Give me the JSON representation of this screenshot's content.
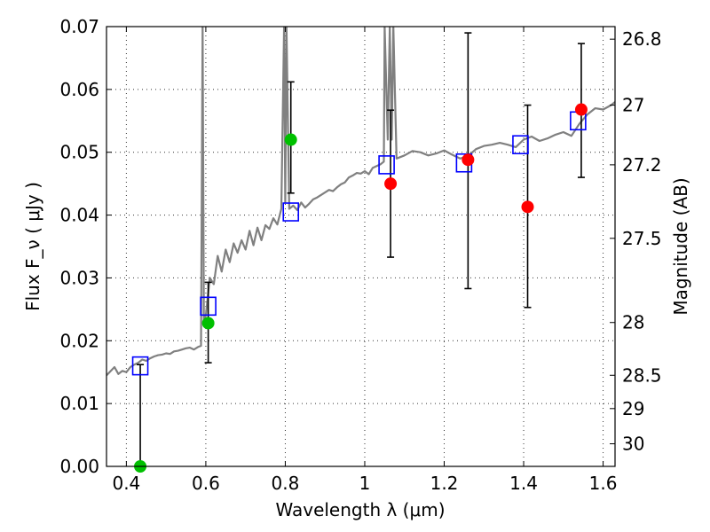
{
  "chart_data": {
    "type": "scatter",
    "xlabel": "Wavelength λ (μm)",
    "ylabel": "Flux F_ν ( μJy )",
    "y2label": "Magnitude (AB)",
    "xlim": [
      0.35,
      1.63
    ],
    "ylim": [
      0.0,
      0.07
    ],
    "grid": true,
    "x_ticks": [
      {
        "value": 0.4,
        "label": "0.4"
      },
      {
        "value": 0.6,
        "label": "0.6"
      },
      {
        "value": 0.8,
        "label": "0.8"
      },
      {
        "value": 1.0,
        "label": "1"
      },
      {
        "value": 1.2,
        "label": "1.2"
      },
      {
        "value": 1.4,
        "label": "1.4"
      },
      {
        "value": 1.6,
        "label": "1.6"
      }
    ],
    "y_ticks": [
      {
        "value": 0.0,
        "label": "0.00"
      },
      {
        "value": 0.01,
        "label": "0.01"
      },
      {
        "value": 0.02,
        "label": "0.02"
      },
      {
        "value": 0.03,
        "label": "0.03"
      },
      {
        "value": 0.04,
        "label": "0.04"
      },
      {
        "value": 0.05,
        "label": "0.05"
      },
      {
        "value": 0.06,
        "label": "0.06"
      },
      {
        "value": 0.07,
        "label": "0.07"
      }
    ],
    "y2_ticks": [
      {
        "flux": 0.068,
        "label": "26.8"
      },
      {
        "flux": 0.0575,
        "label": "27"
      },
      {
        "flux": 0.048,
        "label": "27.2"
      },
      {
        "flux": 0.0363,
        "label": "27.5"
      },
      {
        "flux": 0.0229,
        "label": "28"
      },
      {
        "flux": 0.0145,
        "label": "28.5"
      },
      {
        "flux": 0.0092,
        "label": "29"
      },
      {
        "flux": 0.0036,
        "label": "30"
      }
    ],
    "colors": {
      "model": "#808080",
      "model_bands": "#0000ff",
      "detections_green": "#00c000",
      "detections_red": "#ff0000",
      "errorbars": "#000000"
    },
    "series": [
      {
        "kind": "model_spectrum",
        "x": [
          0.35,
          0.37,
          0.38,
          0.39,
          0.4,
          0.41,
          0.42,
          0.43,
          0.44,
          0.45,
          0.46,
          0.47,
          0.48,
          0.49,
          0.5,
          0.51,
          0.52,
          0.53,
          0.54,
          0.55,
          0.56,
          0.57,
          0.58,
          0.588,
          0.592,
          0.595,
          0.6,
          0.61,
          0.62,
          0.63,
          0.64,
          0.65,
          0.66,
          0.67,
          0.68,
          0.69,
          0.7,
          0.71,
          0.72,
          0.73,
          0.74,
          0.75,
          0.76,
          0.77,
          0.78,
          0.79,
          0.797,
          0.8,
          0.803,
          0.81,
          0.82,
          0.83,
          0.84,
          0.85,
          0.86,
          0.87,
          0.88,
          0.89,
          0.9,
          0.91,
          0.92,
          0.93,
          0.94,
          0.95,
          0.96,
          0.97,
          0.98,
          0.99,
          1.0,
          1.01,
          1.02,
          1.03,
          1.04,
          1.048,
          1.05,
          1.058,
          1.063,
          1.068,
          1.072,
          1.08,
          1.1,
          1.12,
          1.14,
          1.16,
          1.18,
          1.2,
          1.22,
          1.24,
          1.26,
          1.28,
          1.3,
          1.32,
          1.34,
          1.36,
          1.38,
          1.4,
          1.42,
          1.44,
          1.46,
          1.48,
          1.5,
          1.52,
          1.54,
          1.56,
          1.58,
          1.6,
          1.62,
          1.63
        ],
        "y": [
          0.0145,
          0.0158,
          0.0147,
          0.0152,
          0.015,
          0.0158,
          0.0162,
          0.0165,
          0.017,
          0.0168,
          0.0172,
          0.0175,
          0.0177,
          0.0178,
          0.018,
          0.0179,
          0.0183,
          0.0184,
          0.0186,
          0.0188,
          0.0189,
          0.0186,
          0.019,
          0.0192,
          0.07,
          0.0232,
          0.024,
          0.03,
          0.029,
          0.0335,
          0.031,
          0.0345,
          0.0325,
          0.0355,
          0.034,
          0.036,
          0.0345,
          0.0375,
          0.0352,
          0.038,
          0.036,
          0.0384,
          0.0378,
          0.0395,
          0.0385,
          0.041,
          0.07,
          0.042,
          0.07,
          0.041,
          0.0415,
          0.0408,
          0.042,
          0.0412,
          0.0418,
          0.0425,
          0.0428,
          0.0432,
          0.0436,
          0.044,
          0.0438,
          0.0444,
          0.0449,
          0.0452,
          0.046,
          0.0463,
          0.0467,
          0.0466,
          0.047,
          0.0465,
          0.0475,
          0.0478,
          0.0481,
          0.0485,
          0.07,
          0.052,
          0.07,
          0.052,
          0.07,
          0.049,
          0.0495,
          0.0502,
          0.05,
          0.0495,
          0.0498,
          0.0503,
          0.0496,
          0.049,
          0.0494,
          0.0505,
          0.051,
          0.0512,
          0.0515,
          0.0512,
          0.0508,
          0.052,
          0.0525,
          0.0518,
          0.0522,
          0.0528,
          0.0532,
          0.0526,
          0.0545,
          0.056,
          0.057,
          0.0568,
          0.0575,
          0.058
        ]
      },
      {
        "kind": "model_band_fluxes",
        "x": [
          0.435,
          0.606,
          0.814,
          1.055,
          1.25,
          1.392,
          1.537
        ],
        "y": [
          0.016,
          0.0255,
          0.0405,
          0.048,
          0.0483,
          0.0512,
          0.055
        ]
      },
      {
        "kind": "observed_green",
        "x": [
          0.435,
          0.606,
          0.814
        ],
        "y": [
          0.0,
          0.0228,
          0.052
        ],
        "err_low": [
          0.0,
          0.0165,
          0.0435
        ],
        "err_high": [
          0.0162,
          0.0293,
          0.0612
        ]
      },
      {
        "kind": "observed_red",
        "x": [
          1.065,
          1.26,
          1.41,
          1.545
        ],
        "y": [
          0.045,
          0.0488,
          0.0413,
          0.0568
        ],
        "err_low": [
          0.0333,
          0.0283,
          0.0253,
          0.046
        ],
        "err_high": [
          0.0567,
          0.069,
          0.0575,
          0.0673
        ]
      }
    ]
  }
}
